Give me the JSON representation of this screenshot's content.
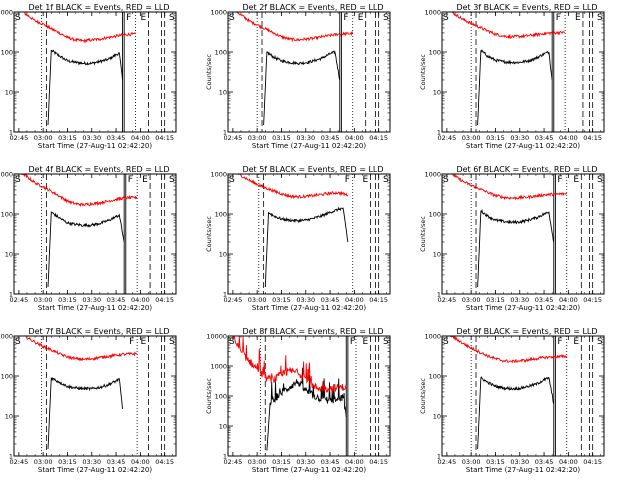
{
  "window": {
    "title": ""
  },
  "colors": {
    "events": "#000000",
    "lld": "#ff0000",
    "axes": "#000000",
    "background": "#ffffff"
  },
  "common": {
    "xtick_labels": [
      "02:45",
      "03:00",
      "03:15",
      "03:30",
      "03:45",
      "04:00",
      "04:15"
    ],
    "xlabel": "Start Time (27-Aug-11 02:42:20)",
    "ylabel": "Counts/sec",
    "ylog": true,
    "flag_labels": {
      "S": "S",
      "F": "F",
      "E": "E"
    }
  },
  "chart_data": [
    {
      "type": "line",
      "title": "Det 1f BLACK = Events, RED = LLD",
      "ylim": [
        1,
        1000
      ],
      "ytick_labels": [
        "1",
        "10",
        "100",
        "1000"
      ],
      "markers": {
        "dotted": [
          "02:59",
          "03:57"
        ],
        "dashed": [
          "03:02",
          "04:05",
          "04:13",
          "04:15"
        ],
        "solid": [
          "03:49",
          "03:50"
        ]
      },
      "series": [
        {
          "name": "BLACK = Events",
          "color": "black",
          "shape": "normal",
          "x": [
            "03:03",
            "03:05",
            "03:10",
            "03:15",
            "03:20",
            "03:25",
            "03:30",
            "03:35",
            "03:40",
            "03:45",
            "03:47",
            "03:49"
          ],
          "y": [
            1.5,
            110,
            80,
            60,
            55,
            52,
            52,
            58,
            65,
            85,
            95,
            20
          ]
        },
        {
          "name": "RED = LLD",
          "color": "red",
          "shape": "normal",
          "x": [
            "02:45",
            "02:55",
            "03:00",
            "03:05",
            "03:10",
            "03:15",
            "03:20",
            "03:25",
            "03:30",
            "03:35",
            "03:40",
            "03:45",
            "03:50",
            "03:57"
          ],
          "y": [
            1200,
            600,
            500,
            380,
            300,
            230,
            200,
            190,
            200,
            210,
            230,
            250,
            270,
            280
          ]
        }
      ]
    },
    {
      "type": "line",
      "title": "Det 2f BLACK = Events, RED = LLD",
      "ylim": [
        1,
        1000
      ],
      "ytick_labels": [
        "1",
        "10",
        "100",
        "1000"
      ],
      "markers": {
        "dotted": [
          "03:00",
          "03:59"
        ],
        "dashed": [
          "03:03",
          "04:07",
          "04:13",
          "04:15"
        ],
        "solid": [
          "03:51",
          "03:52"
        ]
      },
      "series": [
        {
          "name": "BLACK = Events",
          "color": "black",
          "shape": "normal",
          "x": [
            "03:04",
            "03:06",
            "03:10",
            "03:15",
            "03:20",
            "03:25",
            "03:30",
            "03:35",
            "03:40",
            "03:45",
            "03:48",
            "03:51"
          ],
          "y": [
            1.5,
            100,
            75,
            60,
            55,
            52,
            54,
            60,
            70,
            90,
            100,
            20
          ]
        },
        {
          "name": "RED = LLD",
          "color": "red",
          "shape": "normal",
          "x": [
            "02:45",
            "02:55",
            "03:00",
            "03:05",
            "03:10",
            "03:15",
            "03:20",
            "03:25",
            "03:30",
            "03:35",
            "03:40",
            "03:45",
            "03:50",
            "03:59"
          ],
          "y": [
            1200,
            600,
            480,
            380,
            300,
            240,
            210,
            200,
            210,
            220,
            240,
            260,
            280,
            290
          ]
        }
      ]
    },
    {
      "type": "line",
      "title": "Det 3f BLACK = Events, RED = LLD",
      "ylim": [
        1,
        1000
      ],
      "ytick_labels": [
        "1",
        "10",
        "100",
        "1000"
      ],
      "markers": {
        "dotted": [
          "03:00",
          "03:58"
        ],
        "dashed": [
          "03:03",
          "04:09",
          "04:13",
          "04:15"
        ],
        "solid": [
          "03:50",
          "03:51"
        ]
      },
      "series": [
        {
          "name": "BLACK = Events",
          "color": "black",
          "shape": "normal",
          "x": [
            "03:04",
            "03:06",
            "03:10",
            "03:15",
            "03:20",
            "03:25",
            "03:30",
            "03:35",
            "03:40",
            "03:45",
            "03:48",
            "03:50"
          ],
          "y": [
            1.5,
            110,
            80,
            62,
            57,
            55,
            55,
            60,
            70,
            90,
            100,
            20
          ]
        },
        {
          "name": "RED = LLD",
          "color": "red",
          "shape": "normal",
          "x": [
            "02:45",
            "02:55",
            "03:00",
            "03:05",
            "03:10",
            "03:15",
            "03:20",
            "03:25",
            "03:30",
            "03:35",
            "03:40",
            "03:45",
            "03:50",
            "03:58"
          ],
          "y": [
            1200,
            650,
            520,
            420,
            340,
            280,
            250,
            240,
            245,
            255,
            270,
            290,
            300,
            310
          ]
        }
      ]
    },
    {
      "type": "line",
      "title": "Det 4f BLACK = Events, RED = LLD",
      "ylim": [
        1,
        1000
      ],
      "ytick_labels": [
        "1",
        "10",
        "100",
        "1000"
      ],
      "markers": {
        "dotted": [
          "02:59",
          "03:58"
        ],
        "dashed": [
          "03:02",
          "04:06",
          "04:13",
          "04:15"
        ],
        "solid": [
          "03:50",
          "03:51"
        ]
      },
      "series": [
        {
          "name": "BLACK = Events",
          "color": "black",
          "shape": "normal",
          "x": [
            "03:03",
            "03:05",
            "03:10",
            "03:15",
            "03:20",
            "03:25",
            "03:30",
            "03:35",
            "03:40",
            "03:45",
            "03:47",
            "03:50"
          ],
          "y": [
            1.5,
            110,
            80,
            60,
            55,
            52,
            53,
            58,
            68,
            85,
            95,
            20
          ]
        },
        {
          "name": "RED = LLD",
          "color": "red",
          "shape": "normal",
          "x": [
            "02:45",
            "02:55",
            "03:00",
            "03:05",
            "03:10",
            "03:15",
            "03:20",
            "03:25",
            "03:30",
            "03:35",
            "03:40",
            "03:45",
            "03:50",
            "03:58"
          ],
          "y": [
            1200,
            600,
            480,
            370,
            280,
            210,
            180,
            170,
            180,
            190,
            210,
            230,
            250,
            260
          ]
        }
      ]
    },
    {
      "type": "line",
      "title": "Det 5f BLACK = Events, RED = LLD",
      "ylim": [
        1,
        1000
      ],
      "ytick_labels": [
        "1",
        "10",
        "100",
        "1000"
      ],
      "markers": {
        "dotted": [
          "03:01",
          "03:59"
        ],
        "dashed": [
          "03:04",
          "04:10",
          "04:13",
          "04:15"
        ],
        "solid": []
      },
      "series": [
        {
          "name": "BLACK = Events",
          "color": "black",
          "shape": "normal",
          "x": [
            "03:05",
            "03:07",
            "03:10",
            "03:15",
            "03:20",
            "03:25",
            "03:30",
            "03:35",
            "03:40",
            "03:45",
            "03:50",
            "03:53",
            "03:56"
          ],
          "y": [
            1.5,
            110,
            90,
            75,
            70,
            68,
            70,
            78,
            90,
            110,
            130,
            140,
            20
          ]
        },
        {
          "name": "RED = LLD",
          "color": "red",
          "shape": "normal",
          "x": [
            "02:45",
            "02:55",
            "03:00",
            "03:05",
            "03:10",
            "03:15",
            "03:20",
            "03:25",
            "03:30",
            "03:35",
            "03:40",
            "03:45",
            "03:50",
            "03:56"
          ],
          "y": [
            1200,
            700,
            550,
            450,
            380,
            320,
            280,
            270,
            275,
            290,
            310,
            330,
            340,
            300
          ]
        }
      ]
    },
    {
      "type": "line",
      "title": "Det 6f BLACK = Events, RED = LLD",
      "ylim": [
        1,
        1000
      ],
      "ytick_labels": [
        "1",
        "10",
        "100",
        "1000"
      ],
      "markers": {
        "dotted": [
          "03:00",
          "03:59"
        ],
        "dashed": [
          "03:03",
          "04:08",
          "04:13",
          "04:15"
        ],
        "solid": [
          "03:51",
          "03:52"
        ]
      },
      "series": [
        {
          "name": "BLACK = Events",
          "color": "black",
          "shape": "normal",
          "x": [
            "03:04",
            "03:06",
            "03:10",
            "03:15",
            "03:20",
            "03:25",
            "03:30",
            "03:35",
            "03:40",
            "03:45",
            "03:48",
            "03:51"
          ],
          "y": [
            1.5,
            120,
            90,
            70,
            65,
            62,
            63,
            70,
            80,
            100,
            110,
            20
          ]
        },
        {
          "name": "RED = LLD",
          "color": "red",
          "shape": "normal",
          "x": [
            "02:45",
            "02:55",
            "03:00",
            "03:05",
            "03:10",
            "03:15",
            "03:20",
            "03:25",
            "03:30",
            "03:35",
            "03:40",
            "03:45",
            "03:50",
            "03:59"
          ],
          "y": [
            1200,
            650,
            520,
            430,
            350,
            290,
            260,
            250,
            255,
            265,
            280,
            300,
            310,
            320
          ]
        }
      ]
    },
    {
      "type": "line",
      "title": "Det 7f BLACK = Events, RED = LLD",
      "ylim": [
        1,
        1000
      ],
      "ytick_labels": [
        "1",
        "10",
        "100",
        "1000"
      ],
      "markers": {
        "dotted": [
          "02:59",
          "03:58"
        ],
        "dashed": [
          "03:02",
          "04:05",
          "04:13",
          "04:15"
        ],
        "solid": []
      },
      "series": [
        {
          "name": "BLACK = Events",
          "color": "black",
          "shape": "normal",
          "x": [
            "03:03",
            "03:05",
            "03:10",
            "03:15",
            "03:20",
            "03:25",
            "03:30",
            "03:35",
            "03:40",
            "03:45",
            "03:47",
            "03:49"
          ],
          "y": [
            1.5,
            90,
            70,
            55,
            50,
            48,
            48,
            52,
            60,
            75,
            85,
            15
          ]
        },
        {
          "name": "RED = LLD",
          "color": "red",
          "shape": "normal",
          "x": [
            "02:45",
            "02:55",
            "03:00",
            "03:05",
            "03:10",
            "03:15",
            "03:20",
            "03:25",
            "03:30",
            "03:35",
            "03:40",
            "03:45",
            "03:50",
            "03:58"
          ],
          "y": [
            1200,
            700,
            550,
            450,
            360,
            300,
            270,
            260,
            270,
            290,
            310,
            330,
            350,
            360
          ]
        }
      ]
    },
    {
      "type": "line",
      "title": "Det 8f BLACK = Events, RED = LLD",
      "ylim": [
        1,
        10000
      ],
      "ytick_labels": [
        "1",
        "10",
        "100",
        "1000",
        "10000"
      ],
      "markers": {
        "dotted": [
          "03:02",
          "04:01"
        ],
        "dashed": [
          "03:05",
          "04:10",
          "04:13",
          "04:15"
        ],
        "solid": [
          "03:55",
          "03:56"
        ]
      },
      "series": [
        {
          "name": "BLACK = Events",
          "color": "black",
          "shape": "spiky",
          "x": [
            "03:06",
            "03:08",
            "03:10",
            "03:15",
            "03:20",
            "03:25",
            "03:30",
            "03:35",
            "03:40",
            "03:45",
            "03:50",
            "03:53",
            "03:55"
          ],
          "y": [
            1.5,
            60,
            80,
            120,
            200,
            300,
            150,
            100,
            80,
            70,
            75,
            90,
            20
          ]
        },
        {
          "name": "RED = LLD",
          "color": "red",
          "shape": "spiky",
          "x": [
            "02:45",
            "02:50",
            "02:55",
            "03:00",
            "03:05",
            "03:10",
            "03:15",
            "03:20",
            "03:25",
            "03:30",
            "03:35",
            "03:40",
            "03:45",
            "03:50",
            "03:55"
          ],
          "y": [
            9000,
            3000,
            1500,
            800,
            400,
            350,
            500,
            700,
            600,
            400,
            200,
            180,
            180,
            190,
            200
          ]
        }
      ]
    },
    {
      "type": "line",
      "title": "Det 9f BLACK = Events, RED = LLD",
      "ylim": [
        1,
        1000
      ],
      "ytick_labels": [
        "1",
        "10",
        "100",
        "1000"
      ],
      "markers": {
        "dotted": [
          "03:00",
          "03:59"
        ],
        "dashed": [
          "03:03",
          "04:08",
          "04:13",
          "04:15"
        ],
        "solid": [
          "03:51",
          "03:52"
        ]
      },
      "series": [
        {
          "name": "BLACK = Events",
          "color": "black",
          "shape": "normal",
          "x": [
            "03:04",
            "03:06",
            "03:10",
            "03:15",
            "03:20",
            "03:25",
            "03:30",
            "03:35",
            "03:40",
            "03:45",
            "03:48",
            "03:51"
          ],
          "y": [
            1.5,
            90,
            70,
            55,
            50,
            48,
            49,
            55,
            62,
            80,
            90,
            20
          ]
        },
        {
          "name": "RED = LLD",
          "color": "red",
          "shape": "normal",
          "x": [
            "02:45",
            "02:55",
            "03:00",
            "03:05",
            "03:10",
            "03:15",
            "03:20",
            "03:25",
            "03:30",
            "03:35",
            "03:40",
            "03:45",
            "03:50",
            "03:59"
          ],
          "y": [
            1200,
            650,
            500,
            400,
            320,
            270,
            240,
            230,
            240,
            250,
            270,
            290,
            300,
            310
          ]
        }
      ]
    }
  ]
}
